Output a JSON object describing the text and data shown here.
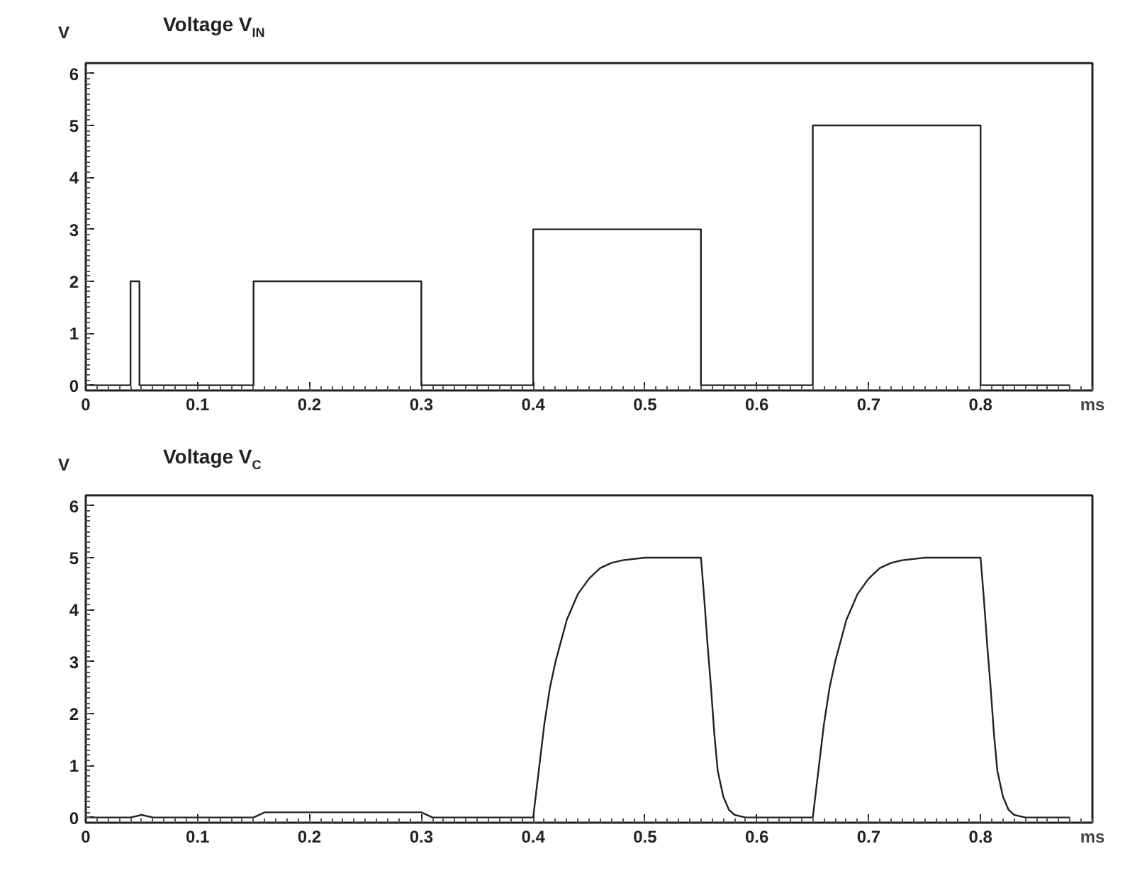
{
  "chart_data": [
    {
      "type": "line",
      "title": "Voltage V$_{IN}$",
      "ylabel": "V",
      "xlabel": "ms",
      "xlim": [
        0,
        0.9
      ],
      "ylim": [
        -0.1,
        6.2
      ],
      "xticks": [
        0,
        0.1,
        0.2,
        0.3,
        0.4,
        0.5,
        0.6,
        0.7,
        0.8
      ],
      "yticks": [
        0,
        1,
        2,
        3,
        4,
        5,
        6
      ],
      "grid": false,
      "series": [
        {
          "color": "#222222",
          "x": [
            0,
            0.04,
            0.04,
            0.048,
            0.048,
            0.15,
            0.15,
            0.3,
            0.3,
            0.4,
            0.4,
            0.55,
            0.55,
            0.65,
            0.65,
            0.8,
            0.8,
            0.88
          ],
          "values": [
            0,
            0,
            2,
            2,
            0,
            0,
            2,
            2,
            0,
            0,
            3,
            3,
            0,
            0,
            5,
            5,
            0,
            0
          ]
        }
      ]
    },
    {
      "type": "line",
      "title": "Voltage V$_{C}$",
      "ylabel": "V",
      "xlabel": "ms",
      "xlim": [
        0,
        0.9
      ],
      "ylim": [
        -0.1,
        6.2
      ],
      "xticks": [
        0,
        0.1,
        0.2,
        0.3,
        0.4,
        0.5,
        0.6,
        0.7,
        0.8
      ],
      "yticks": [
        0,
        1,
        2,
        3,
        4,
        5,
        6
      ],
      "grid": false,
      "series": [
        {
          "color": "#222222",
          "x": [
            0,
            0.04,
            0.05,
            0.06,
            0.15,
            0.16,
            0.3,
            0.31,
            0.4,
            0.405,
            0.41,
            0.415,
            0.42,
            0.43,
            0.44,
            0.45,
            0.46,
            0.47,
            0.48,
            0.5,
            0.55,
            0.553,
            0.556,
            0.559,
            0.562,
            0.565,
            0.57,
            0.575,
            0.58,
            0.59,
            0.65,
            0.655,
            0.66,
            0.665,
            0.67,
            0.68,
            0.69,
            0.7,
            0.71,
            0.72,
            0.73,
            0.75,
            0.8,
            0.803,
            0.806,
            0.809,
            0.812,
            0.815,
            0.82,
            0.825,
            0.83,
            0.84,
            0.88
          ],
          "values": [
            0,
            0,
            0.05,
            0,
            0,
            0.1,
            0.1,
            0,
            0,
            0.9,
            1.8,
            2.5,
            3.0,
            3.8,
            4.3,
            4.6,
            4.8,
            4.9,
            4.95,
            5.0,
            5.0,
            4.2,
            3.3,
            2.5,
            1.6,
            0.9,
            0.4,
            0.15,
            0.05,
            0,
            0,
            0.9,
            1.8,
            2.5,
            3.0,
            3.8,
            4.3,
            4.6,
            4.8,
            4.9,
            4.95,
            5.0,
            5.0,
            4.2,
            3.3,
            2.5,
            1.6,
            0.9,
            0.4,
            0.15,
            0.05,
            0,
            0
          ]
        }
      ]
    }
  ]
}
